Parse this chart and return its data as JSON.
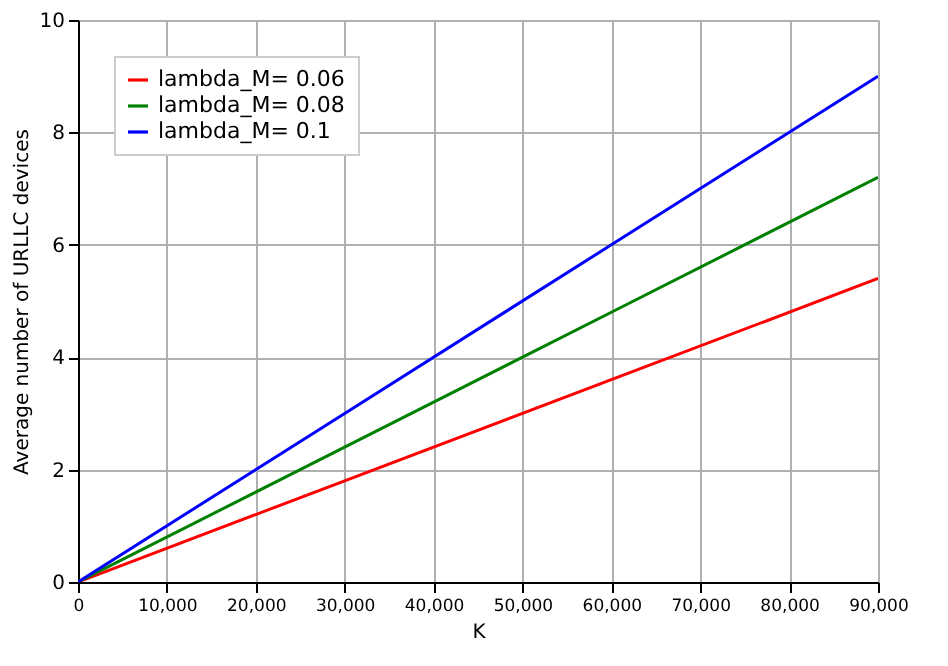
{
  "chart_data": {
    "type": "line",
    "xlabel": "K",
    "ylabel": "Average number of URLLC devices",
    "x": [
      0,
      30000,
      60000,
      90000
    ],
    "series": [
      {
        "name": "lambda_M= 0.06",
        "color": "#ff0000",
        "values": [
          0,
          1.8,
          3.6,
          5.4
        ]
      },
      {
        "name": "lambda_M= 0.08",
        "color": "#008000",
        "values": [
          0,
          2.4,
          4.8,
          7.2
        ]
      },
      {
        "name": "lambda_M= 0.1",
        "color": "#0000ff",
        "values": [
          0,
          3.0,
          6.0,
          9.0
        ]
      }
    ],
    "xlim": [
      0,
      90000
    ],
    "ylim": [
      0,
      10
    ],
    "xticks": [
      0,
      {
        "value": 10000,
        "label": "10,000"
      },
      {
        "value": 20000,
        "label": "20,000"
      },
      {
        "value": 30000,
        "label": "30,000"
      },
      {
        "value": 40000,
        "label": "40,000"
      },
      {
        "value": 50000,
        "label": "50,000"
      },
      {
        "value": 60000,
        "label": "60,000"
      },
      {
        "value": 70000,
        "label": "70,000"
      },
      {
        "value": 80000,
        "label": "80,000"
      },
      {
        "value": 90000,
        "label": "90,000"
      }
    ],
    "yticks": [
      0,
      2,
      4,
      6,
      8,
      10
    ],
    "grid": true,
    "legend": "top left",
    "marker": "none",
    "line_style": "solid"
  }
}
